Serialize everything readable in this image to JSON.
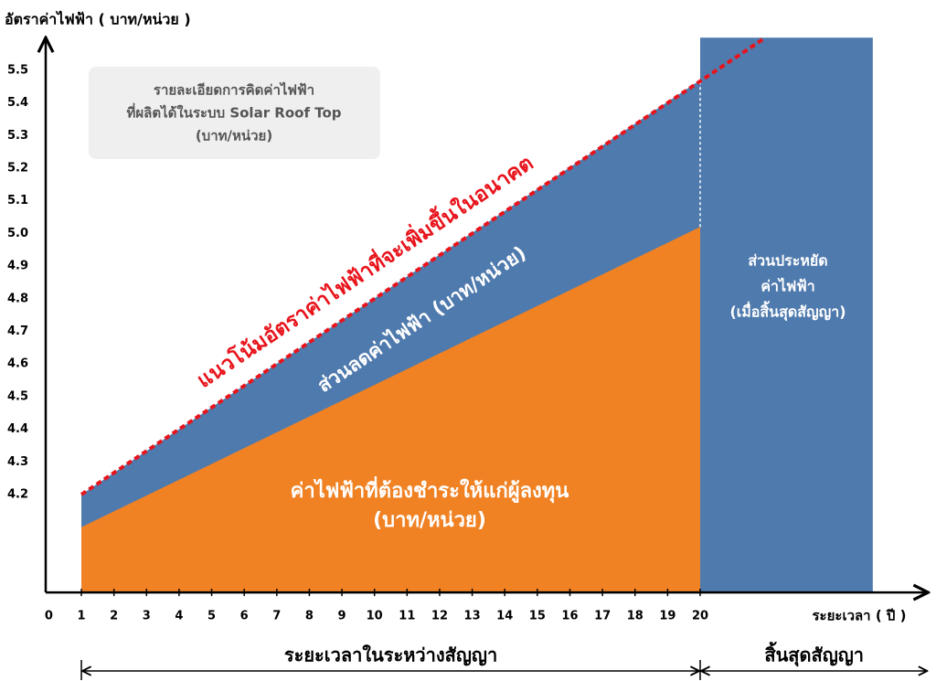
{
  "chart_data": {
    "type": "area",
    "y_label": "อัตราค่าไฟฟ้า ( บาท/หน่วย )",
    "x_label": "ระยะเวลา ( ปี )",
    "info_box": [
      "รายละเอียดการคิดค่าไฟฟ้า",
      "ที่ผลิตได้ในระบบ Solar Roof Top",
      "(บาท/หน่วย)"
    ],
    "xlim": [
      0,
      27
    ],
    "ylim": [
      3.9,
      5.6
    ],
    "xticks": [
      0,
      1,
      2,
      3,
      4,
      5,
      6,
      7,
      8,
      9,
      10,
      11,
      12,
      13,
      14,
      15,
      16,
      17,
      18,
      19,
      20
    ],
    "yticks": [
      4.2,
      4.3,
      4.4,
      4.5,
      4.6,
      4.7,
      4.8,
      4.9,
      {
        "value": 5,
        "label": "5.0"
      },
      5.1,
      5.2,
      5.3,
      5.4,
      5.5
    ],
    "series": [
      {
        "kind": "area",
        "color": "#4f7aad",
        "x": [
          1,
          20
        ],
        "values": [
          4.2,
          5.47
        ],
        "label": [
          "ส่วนลดค่าไฟฟ้า (บาท/หน่วย)"
        ]
      },
      {
        "kind": "area",
        "color": "#f08224",
        "x": [
          1,
          20
        ],
        "values": [
          4.1,
          5.02
        ],
        "label": [
          "ค่าไฟฟ้าที่ต้องชำระให้แก่ผู้ลงทุน",
          "(บาท/หน่วย)"
        ]
      },
      {
        "kind": "block",
        "color": "#4f7aad",
        "x": [
          20,
          25.3
        ],
        "values": [
          5.6,
          5.6
        ],
        "label": [
          "ส่วนประหยัด",
          "ค่าไฟฟ้า",
          "(เมื่อสิ้นสุดสัญญา)"
        ]
      },
      {
        "kind": "trend",
        "color": "#e8141c",
        "x": [
          1,
          22
        ],
        "values": [
          4.2,
          5.6
        ],
        "label": [
          "แนวโน้มอัตราค่าไฟฟ้าที่จะเพิ่มขึ้นในอนาคต"
        ]
      }
    ],
    "periods": [
      {
        "label": "ระยะเวลาในระหว่างสัญญา",
        "x": [
          1,
          20
        ]
      },
      {
        "label": "สิ้นสุดสัญญา",
        "x": [
          20,
          27
        ]
      }
    ]
  }
}
